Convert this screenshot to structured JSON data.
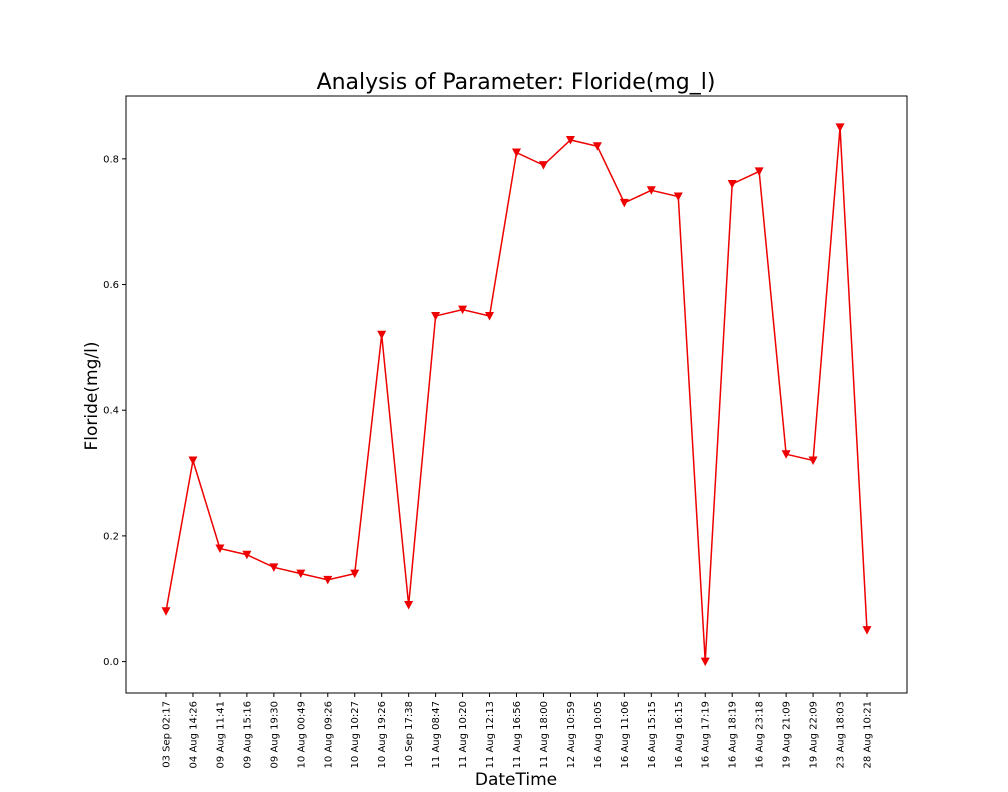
{
  "chart_data": {
    "type": "line",
    "title": "Analysis of Parameter: Floride(mg_l)",
    "xlabel": "DateTime",
    "ylabel": "Floride(mg/l)",
    "ylim": [
      -0.05,
      0.9
    ],
    "yticks": [
      "0.0",
      "0.2",
      "0.4",
      "0.6",
      "0.8"
    ],
    "grid": false,
    "marker": "triangle-down",
    "colors": {
      "line": "#ee0000",
      "marker": "#ee0000"
    },
    "categories": [
      "03 Sep 02:17",
      "04 Aug 14:26",
      "09 Aug 11:41",
      "09 Aug 15:16",
      "09 Aug 19:30",
      "10 Aug 00:49",
      "10 Aug 09:26",
      "10 Aug 10:27",
      "10 Aug 19:26",
      "10 Sep 17:38",
      "11 Aug 08:47",
      "11 Aug 10:20",
      "11 Aug 12:13",
      "11 Aug 16:56",
      "11 Aug 18:00",
      "12 Aug 10:59",
      "16 Aug 10:05",
      "16 Aug 11:06",
      "16 Aug 15:15",
      "16 Aug 16:15",
      "16 Aug 17:19",
      "16 Aug 18:19",
      "16 Aug 23:18",
      "19 Aug 21:09",
      "19 Aug 22:09",
      "23 Aug 18:03",
      "28 Aug 10:21"
    ],
    "series": [
      {
        "values": [
          0.08,
          0.32,
          0.18,
          0.17,
          0.15,
          0.14,
          0.13,
          0.14,
          0.52,
          0.09,
          0.55,
          0.56,
          0.55,
          0.81,
          0.79,
          0.83,
          0.82,
          0.73,
          0.75,
          0.74,
          0.0,
          0.76,
          0.78,
          0.33,
          0.32,
          0.85,
          0.05
        ]
      }
    ]
  }
}
